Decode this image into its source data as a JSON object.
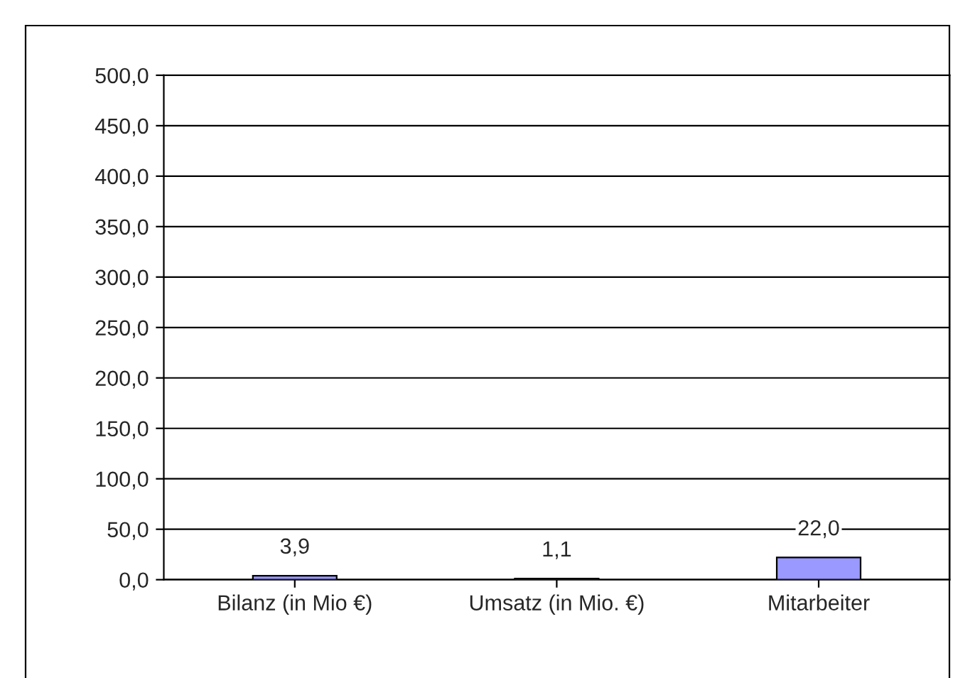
{
  "chart_data": {
    "type": "bar",
    "categories": [
      "Bilanz (in Mio €)",
      "Umsatz (in Mio. €)",
      "Mitarbeiter"
    ],
    "values": [
      3.9,
      1.1,
      22.0
    ],
    "value_labels": [
      "3,9",
      "1,1",
      "22,0"
    ],
    "color": "#9999ff",
    "ylim": [
      0,
      500
    ],
    "yticks": [
      {
        "value": 0,
        "label": "0,0"
      },
      {
        "value": 50,
        "label": "50,0"
      },
      {
        "value": 100,
        "label": "100,0"
      },
      {
        "value": 150,
        "label": "150,0"
      },
      {
        "value": 200,
        "label": "200,0"
      },
      {
        "value": 250,
        "label": "250,0"
      },
      {
        "value": 300,
        "label": "300,0"
      },
      {
        "value": 350,
        "label": "350,0"
      },
      {
        "value": 400,
        "label": "400,0"
      },
      {
        "value": 450,
        "label": "450,0"
      },
      {
        "value": 500,
        "label": "500,0"
      }
    ],
    "grid": "y"
  }
}
